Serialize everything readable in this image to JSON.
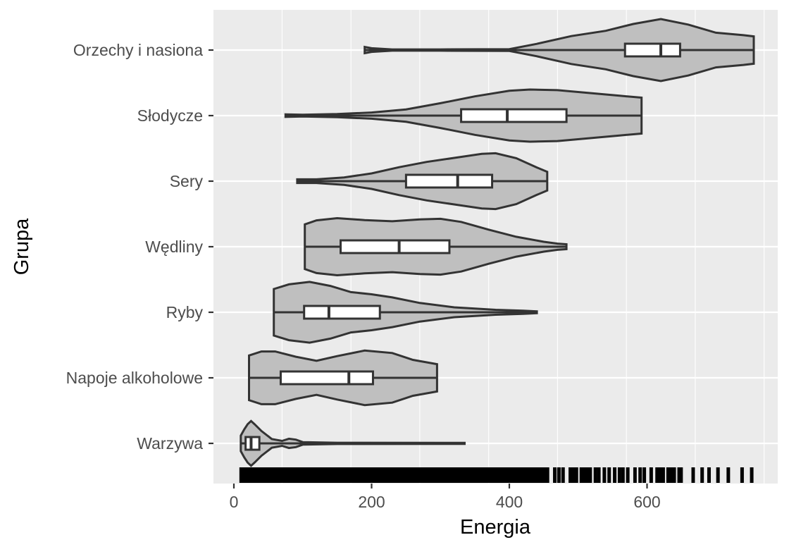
{
  "chart_data": {
    "type": "violin",
    "title": "",
    "xlabel": "Energia",
    "ylabel": "Grupa",
    "xlim": [
      -30,
      790
    ],
    "x_ticks": [
      0,
      200,
      400,
      600
    ],
    "x_tick_labels": [
      "0",
      "200",
      "400",
      "600"
    ],
    "grid": true,
    "legend": "none",
    "colors": {
      "panel": "#ebebeb",
      "grid": "#ffffff",
      "violin_fill": "#bfbfbf",
      "outline": "#333333",
      "box_fill": "#ffffff",
      "rug": "#000000"
    },
    "groups": [
      {
        "label": "Orzechy i nasiona",
        "min": 190,
        "q1": 568,
        "median": 620,
        "q3": 648,
        "max": 755,
        "density": [
          [
            190,
            0.1
          ],
          [
            200,
            0.06
          ],
          [
            230,
            0.02
          ],
          [
            300,
            0.02
          ],
          [
            400,
            0.03
          ],
          [
            440,
            0.2
          ],
          [
            490,
            0.45
          ],
          [
            540,
            0.62
          ],
          [
            580,
            0.84
          ],
          [
            620,
            1.0
          ],
          [
            660,
            0.82
          ],
          [
            700,
            0.56
          ],
          [
            740,
            0.48
          ],
          [
            755,
            0.44
          ]
        ]
      },
      {
        "label": "Słodycze",
        "min": 75,
        "q1": 330,
        "median": 397,
        "q3": 483,
        "max": 592,
        "density": [
          [
            75,
            0.04
          ],
          [
            100,
            0.03
          ],
          [
            150,
            0.05
          ],
          [
            200,
            0.1
          ],
          [
            250,
            0.2
          ],
          [
            300,
            0.4
          ],
          [
            350,
            0.62
          ],
          [
            400,
            0.8
          ],
          [
            430,
            0.84
          ],
          [
            470,
            0.82
          ],
          [
            520,
            0.72
          ],
          [
            560,
            0.64
          ],
          [
            592,
            0.58
          ]
        ]
      },
      {
        "label": "Sery",
        "min": 92,
        "q1": 250,
        "median": 325,
        "q3": 375,
        "max": 455,
        "density": [
          [
            92,
            0.06
          ],
          [
            120,
            0.06
          ],
          [
            160,
            0.12
          ],
          [
            200,
            0.25
          ],
          [
            240,
            0.45
          ],
          [
            280,
            0.62
          ],
          [
            320,
            0.75
          ],
          [
            360,
            0.88
          ],
          [
            380,
            0.9
          ],
          [
            410,
            0.74
          ],
          [
            440,
            0.44
          ],
          [
            455,
            0.3
          ]
        ]
      },
      {
        "label": "Wędliny",
        "min": 103,
        "q1": 155,
        "median": 240,
        "q3": 313,
        "max": 483,
        "density": [
          [
            103,
            0.72
          ],
          [
            120,
            0.85
          ],
          [
            150,
            0.92
          ],
          [
            190,
            0.86
          ],
          [
            230,
            0.82
          ],
          [
            270,
            0.88
          ],
          [
            300,
            0.9
          ],
          [
            330,
            0.8
          ],
          [
            370,
            0.55
          ],
          [
            410,
            0.32
          ],
          [
            450,
            0.16
          ],
          [
            470,
            0.1
          ],
          [
            483,
            0.08
          ]
        ]
      },
      {
        "label": "Ryby",
        "min": 58,
        "q1": 102,
        "median": 138,
        "q3": 212,
        "max": 440,
        "density": [
          [
            58,
            0.75
          ],
          [
            80,
            0.9
          ],
          [
            110,
            0.98
          ],
          [
            140,
            0.85
          ],
          [
            170,
            0.65
          ],
          [
            200,
            0.58
          ],
          [
            230,
            0.48
          ],
          [
            270,
            0.3
          ],
          [
            320,
            0.16
          ],
          [
            380,
            0.08
          ],
          [
            420,
            0.05
          ],
          [
            440,
            0.03
          ]
        ]
      },
      {
        "label": "Napoje alkoholowe",
        "min": 22,
        "q1": 68,
        "median": 167,
        "q3": 202,
        "max": 295,
        "density": [
          [
            22,
            0.72
          ],
          [
            40,
            0.85
          ],
          [
            60,
            0.85
          ],
          [
            90,
            0.68
          ],
          [
            120,
            0.55
          ],
          [
            150,
            0.7
          ],
          [
            190,
            0.88
          ],
          [
            230,
            0.8
          ],
          [
            260,
            0.58
          ],
          [
            285,
            0.48
          ],
          [
            295,
            0.44
          ]
        ]
      },
      {
        "label": "Warzywa",
        "min": 10,
        "q1": 17,
        "median": 25,
        "q3": 37,
        "max": 335,
        "density": [
          [
            10,
            0.25
          ],
          [
            15,
            0.45
          ],
          [
            20,
            0.62
          ],
          [
            25,
            0.72
          ],
          [
            30,
            0.62
          ],
          [
            40,
            0.4
          ],
          [
            55,
            0.14
          ],
          [
            70,
            0.08
          ],
          [
            80,
            0.15
          ],
          [
            90,
            0.12
          ],
          [
            100,
            0.04
          ],
          [
            150,
            0.02
          ],
          [
            335,
            0.015
          ]
        ]
      }
    ],
    "rug": {
      "dense_ranges": [
        [
          8,
          458
        ],
        [
          486,
          500
        ],
        [
          502,
          520
        ],
        [
          580,
          585
        ],
        [
          612,
          626
        ],
        [
          628,
          642
        ],
        [
          644,
          652
        ]
      ],
      "ticks": [
        466,
        472,
        478,
        525,
        530,
        538,
        545,
        553,
        560,
        565,
        572,
        590,
        596,
        606,
        667,
        680,
        690,
        703,
        718,
        738,
        752
      ]
    }
  }
}
